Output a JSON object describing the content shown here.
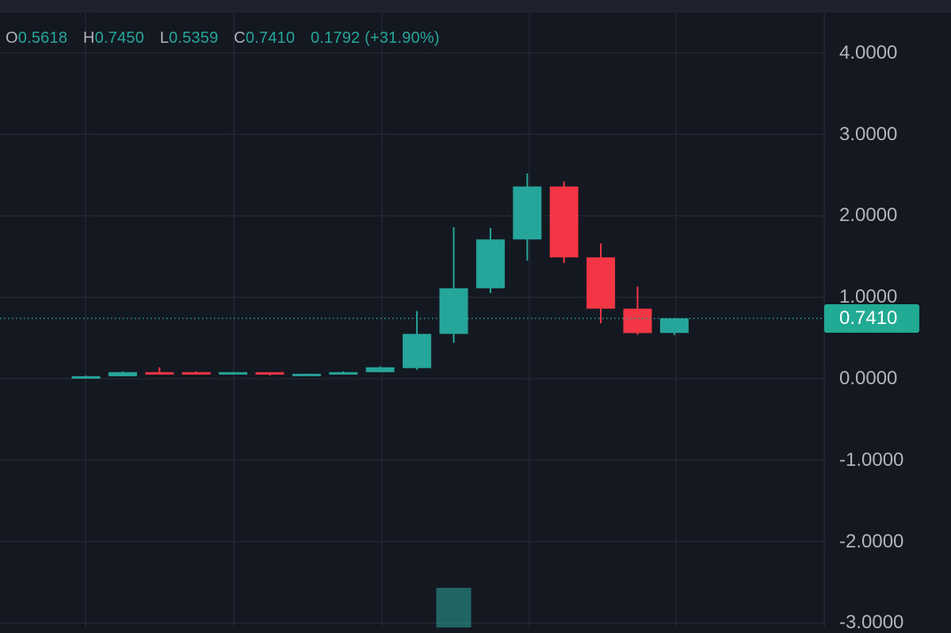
{
  "legend": {
    "open_key": "O",
    "open_value": "0.5618",
    "high_key": "H",
    "high_value": "0.7450",
    "low_key": "L",
    "low_value": "0.5359",
    "close_key": "C",
    "close_value": "0.7410",
    "change": "0.1792 (+31.90%)"
  },
  "last_price_label": "0.7410",
  "colors": {
    "up": "#26a69a",
    "down": "#f23645",
    "volume": "#26a69a",
    "background": "#141821",
    "grid": "#2a2e39",
    "price_tag": "#22ab94",
    "axis_text": "#b2b5be"
  },
  "chart_data": {
    "type": "candlestick",
    "y_ticks": [
      {
        "value": 4,
        "label": "4.0000"
      },
      {
        "value": 3,
        "label": "3.0000"
      },
      {
        "value": 2,
        "label": "2.0000"
      },
      {
        "value": 1,
        "label": "1.0000"
      },
      {
        "value": 0,
        "label": "0.0000"
      },
      {
        "value": -1,
        "label": "-1.0000"
      },
      {
        "value": -2,
        "label": "-2.0000"
      },
      {
        "value": -3,
        "label": "-3.0000"
      }
    ],
    "last_price": 0.741,
    "grid": true,
    "candles": [
      {
        "open": 0.02,
        "high": 0.04,
        "low": 0.02,
        "close": 0.03
      },
      {
        "open": 0.03,
        "high": 0.09,
        "low": 0.03,
        "close": 0.08
      },
      {
        "open": 0.08,
        "high": 0.14,
        "low": 0.06,
        "close": 0.07
      },
      {
        "open": 0.08,
        "high": 0.09,
        "low": 0.06,
        "close": 0.07
      },
      {
        "open": 0.07,
        "high": 0.08,
        "low": 0.06,
        "close": 0.08
      },
      {
        "open": 0.08,
        "high": 0.08,
        "low": 0.04,
        "close": 0.05
      },
      {
        "open": 0.05,
        "high": 0.06,
        "low": 0.05,
        "close": 0.06
      },
      {
        "open": 0.06,
        "high": 0.09,
        "low": 0.06,
        "close": 0.08
      },
      {
        "open": 0.08,
        "high": 0.15,
        "low": 0.08,
        "close": 0.14
      },
      {
        "open": 0.13,
        "high": 0.83,
        "low": 0.11,
        "close": 0.55
      },
      {
        "open": 0.55,
        "high": 1.86,
        "low": 0.44,
        "close": 1.11
      },
      {
        "open": 1.11,
        "high": 1.85,
        "low": 1.05,
        "close": 1.71
      },
      {
        "open": 1.71,
        "high": 2.52,
        "low": 1.45,
        "close": 2.36
      },
      {
        "open": 2.36,
        "high": 2.42,
        "low": 1.42,
        "close": 1.49
      },
      {
        "open": 1.49,
        "high": 1.66,
        "low": 0.68,
        "close": 0.86
      },
      {
        "open": 0.86,
        "high": 1.13,
        "low": 0.54,
        "close": 0.56
      },
      {
        "open": 0.5618,
        "high": 0.745,
        "low": 0.5359,
        "close": 0.741
      }
    ],
    "volume_highlight_index": 10
  }
}
